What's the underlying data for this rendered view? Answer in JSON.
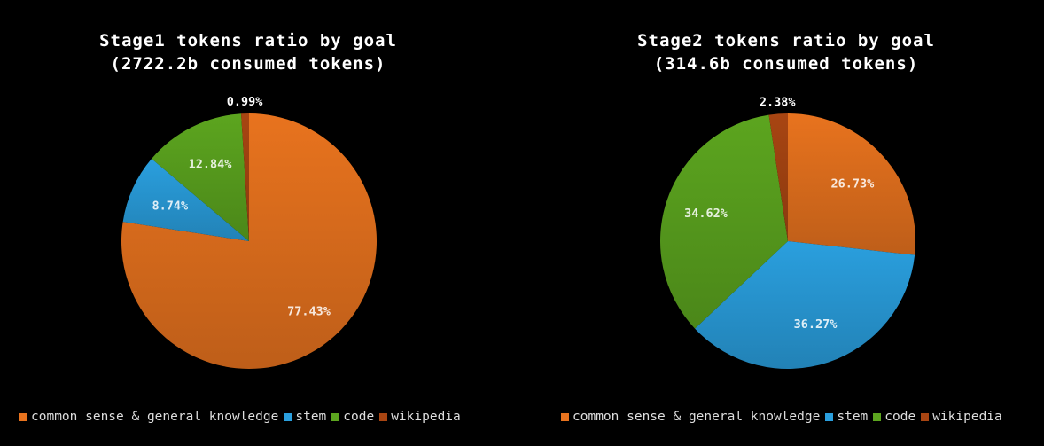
{
  "colors": {
    "common sense & general knowledge": "#E8731E",
    "stem": "#2A9FDE",
    "code": "#5CA51F",
    "wikipedia": "#A84512"
  },
  "legend": [
    "common sense & general knowledge",
    "stem",
    "code",
    "wikipedia"
  ],
  "chart_data": [
    {
      "type": "pie",
      "title": "Stage1 tokens ratio by goal",
      "subtitle": "(2722.2b consumed tokens)",
      "categories": [
        "common sense & general knowledge",
        "stem",
        "code",
        "wikipedia"
      ],
      "values": [
        77.43,
        8.74,
        12.84,
        0.99
      ],
      "labels": [
        "77.43%",
        "8.74%",
        "12.84%",
        "0.99%"
      ],
      "legend_position": "bottom"
    },
    {
      "type": "pie",
      "title": "Stage2 tokens ratio by goal",
      "subtitle": "(314.6b consumed tokens)",
      "categories": [
        "common sense & general knowledge",
        "stem",
        "code",
        "wikipedia"
      ],
      "values": [
        26.73,
        36.27,
        34.62,
        2.38
      ],
      "labels": [
        "26.73%",
        "36.27%",
        "34.62%",
        "2.38%"
      ],
      "legend_position": "bottom"
    }
  ]
}
